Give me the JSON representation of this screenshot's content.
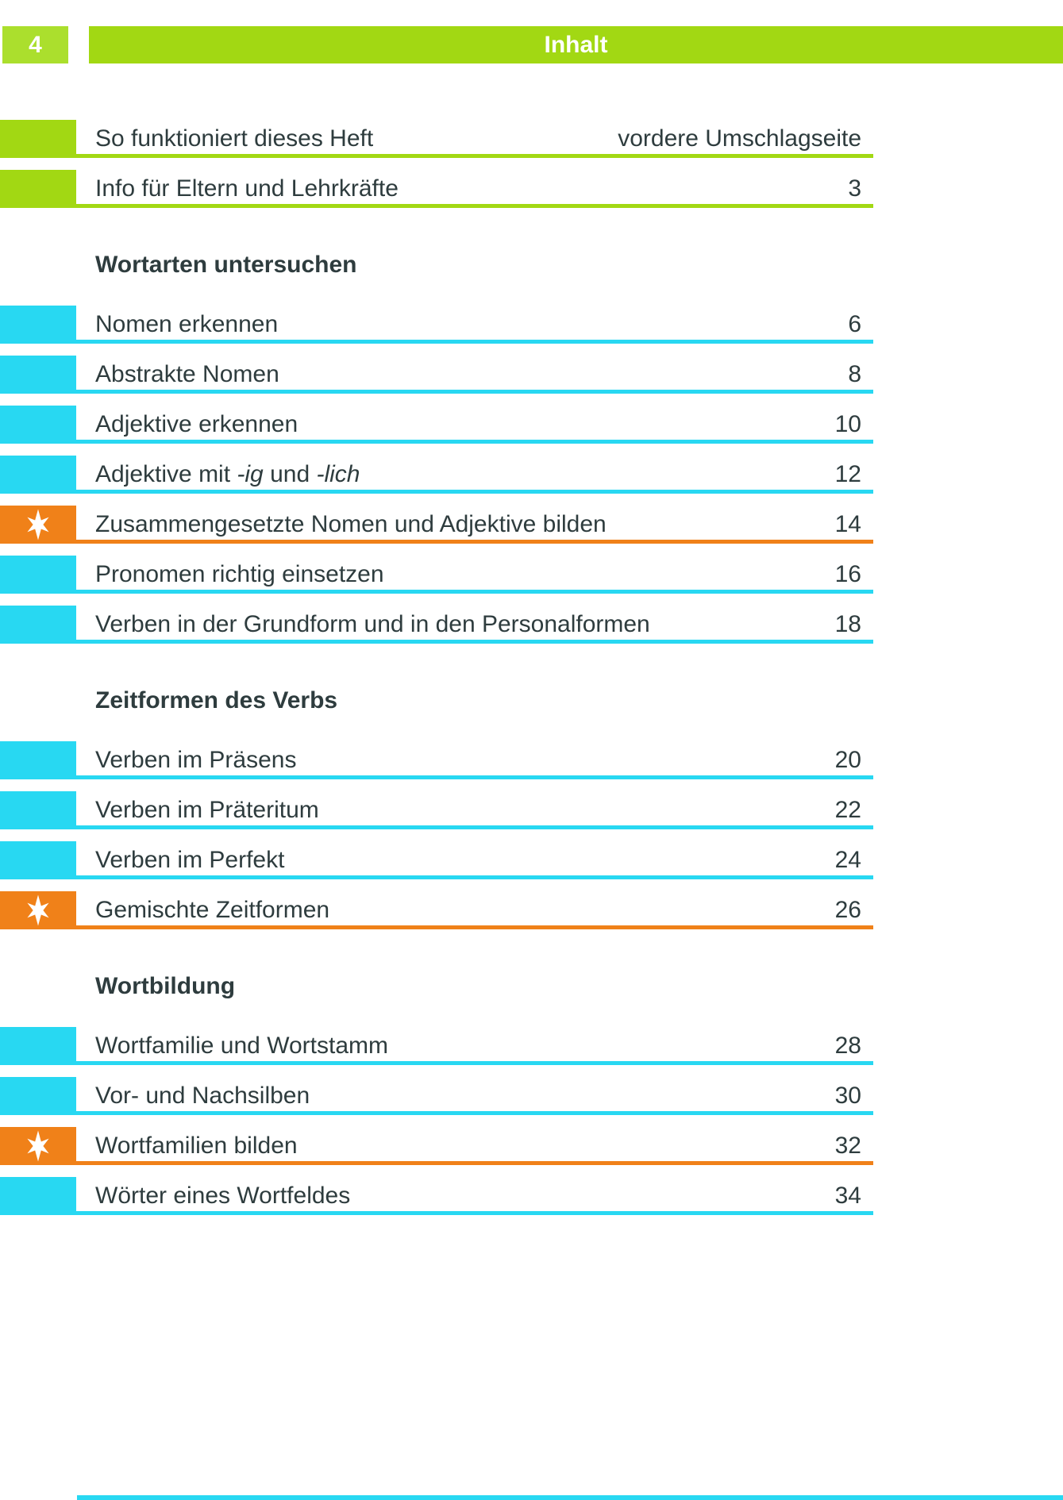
{
  "page": {
    "number": "4",
    "header_title": "Inhalt"
  },
  "colors": {
    "green": "#a2d813",
    "green_box": "#abdf2d",
    "cyan": "#28d8f2",
    "orange": "#f    58220",
    "orange_fixed": "#f08119",
    "text_dark": "#2e3c3e",
    "white": "#ffffff"
  },
  "icons": {
    "star": "star-burst-icon"
  },
  "toc": {
    "intro_rows": [
      {
        "type": "green",
        "title_parts": [
          {
            "text": "So funktioniert dieses Heft",
            "italic": false
          }
        ],
        "page": "vordere Umschlagseite"
      },
      {
        "type": "green",
        "title_parts": [
          {
            "text": "Info für Eltern und Lehrkräfte",
            "italic": false
          }
        ],
        "page": "3"
      }
    ],
    "sections": [
      {
        "heading": "Wortarten untersuchen",
        "rows": [
          {
            "type": "cyan",
            "title_parts": [
              {
                "text": "Nomen erkennen",
                "italic": false
              }
            ],
            "page": "6"
          },
          {
            "type": "cyan",
            "title_parts": [
              {
                "text": "Abstrakte Nomen",
                "italic": false
              }
            ],
            "page": "8"
          },
          {
            "type": "cyan",
            "title_parts": [
              {
                "text": "Adjektive erkennen",
                "italic": false
              }
            ],
            "page": "10"
          },
          {
            "type": "cyan",
            "title_parts": [
              {
                "text": "Adjektive mit ",
                "italic": false
              },
              {
                "text": "-ig",
                "italic": true
              },
              {
                "text": " und ",
                "italic": false
              },
              {
                "text": "-lich",
                "italic": true
              }
            ],
            "page": "12"
          },
          {
            "type": "star",
            "title_parts": [
              {
                "text": "Zusammengesetzte Nomen und Adjektive bilden",
                "italic": false
              }
            ],
            "page": "14"
          },
          {
            "type": "cyan",
            "title_parts": [
              {
                "text": "Pronomen richtig einsetzen",
                "italic": false
              }
            ],
            "page": "16"
          },
          {
            "type": "cyan",
            "title_parts": [
              {
                "text": "Verben in der Grundform und in den Personalformen",
                "italic": false
              }
            ],
            "page": "18"
          }
        ]
      },
      {
        "heading": "Zeitformen des Verbs",
        "rows": [
          {
            "type": "cyan",
            "title_parts": [
              {
                "text": "Verben im Präsens",
                "italic": false
              }
            ],
            "page": "20"
          },
          {
            "type": "cyan",
            "title_parts": [
              {
                "text": "Verben im Präteritum",
                "italic": false
              }
            ],
            "page": "22"
          },
          {
            "type": "cyan",
            "title_parts": [
              {
                "text": "Verben im Perfekt",
                "italic": false
              }
            ],
            "page": "24"
          },
          {
            "type": "star",
            "title_parts": [
              {
                "text": "Gemischte Zeitformen",
                "italic": false
              }
            ],
            "page": "26"
          }
        ]
      },
      {
        "heading": "Wortbildung",
        "rows": [
          {
            "type": "cyan",
            "title_parts": [
              {
                "text": "Wortfamilie und Wortstamm",
                "italic": false
              }
            ],
            "page": "28"
          },
          {
            "type": "cyan",
            "title_parts": [
              {
                "text": "Vor- und Nachsilben",
                "italic": false
              }
            ],
            "page": "30"
          },
          {
            "type": "star",
            "title_parts": [
              {
                "text": "Wortfamilien bilden",
                "italic": false
              }
            ],
            "page": "32"
          },
          {
            "type": "cyan",
            "title_parts": [
              {
                "text": "Wörter eines Wortfeldes",
                "italic": false
              }
            ],
            "page": "34"
          }
        ]
      }
    ]
  }
}
